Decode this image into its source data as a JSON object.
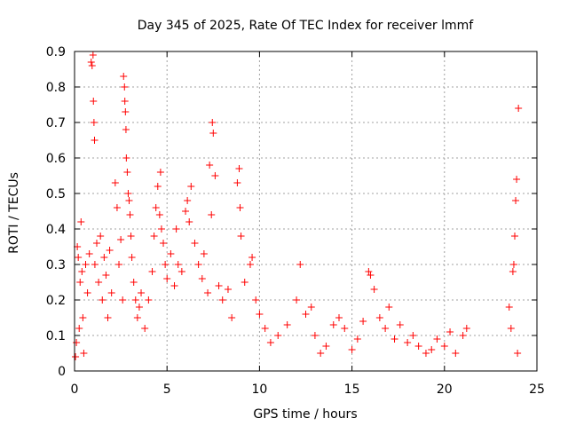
{
  "chart_data": {
    "type": "scatter",
    "title": "Day 345 of 2025, Rate Of TEC Index for receiver lmmf",
    "xlabel": "GPS time / hours",
    "ylabel": "ROTI / TECUs",
    "xlim": [
      0,
      25
    ],
    "ylim": [
      0,
      0.9
    ],
    "x_ticks": [
      "0",
      "5",
      "10",
      "15",
      "20",
      "25"
    ],
    "y_ticks": [
      "0",
      "0.1",
      "0.2",
      "0.3",
      "0.4",
      "0.5",
      "0.6",
      "0.7",
      "0.8",
      "0.9"
    ],
    "grid": true,
    "marker": "+",
    "marker_color": "#ff0000",
    "series": [
      {
        "name": "ROTI",
        "points": [
          [
            0.05,
            0.04
          ],
          [
            0.1,
            0.08
          ],
          [
            0.15,
            0.35
          ],
          [
            0.2,
            0.32
          ],
          [
            0.25,
            0.12
          ],
          [
            0.3,
            0.25
          ],
          [
            0.35,
            0.42
          ],
          [
            0.4,
            0.28
          ],
          [
            0.45,
            0.15
          ],
          [
            0.5,
            0.05
          ],
          [
            0.6,
            0.3
          ],
          [
            0.7,
            0.22
          ],
          [
            0.8,
            0.33
          ],
          [
            0.9,
            0.87
          ],
          [
            0.95,
            0.86
          ],
          [
            1.0,
            0.89
          ],
          [
            1.02,
            0.76
          ],
          [
            1.05,
            0.7
          ],
          [
            1.08,
            0.65
          ],
          [
            1.1,
            0.3
          ],
          [
            1.2,
            0.36
          ],
          [
            1.3,
            0.25
          ],
          [
            1.4,
            0.38
          ],
          [
            1.5,
            0.2
          ],
          [
            1.6,
            0.32
          ],
          [
            1.7,
            0.27
          ],
          [
            1.8,
            0.15
          ],
          [
            1.9,
            0.34
          ],
          [
            2.0,
            0.22
          ],
          [
            2.2,
            0.53
          ],
          [
            2.3,
            0.46
          ],
          [
            2.4,
            0.3
          ],
          [
            2.5,
            0.37
          ],
          [
            2.6,
            0.2
          ],
          [
            2.65,
            0.83
          ],
          [
            2.7,
            0.8
          ],
          [
            2.72,
            0.76
          ],
          [
            2.75,
            0.73
          ],
          [
            2.78,
            0.68
          ],
          [
            2.8,
            0.6
          ],
          [
            2.85,
            0.56
          ],
          [
            2.9,
            0.5
          ],
          [
            2.95,
            0.48
          ],
          [
            3.0,
            0.44
          ],
          [
            3.05,
            0.38
          ],
          [
            3.1,
            0.32
          ],
          [
            3.2,
            0.25
          ],
          [
            3.3,
            0.2
          ],
          [
            3.4,
            0.15
          ],
          [
            3.5,
            0.18
          ],
          [
            3.6,
            0.22
          ],
          [
            3.8,
            0.12
          ],
          [
            4.0,
            0.2
          ],
          [
            4.2,
            0.28
          ],
          [
            4.3,
            0.38
          ],
          [
            4.4,
            0.46
          ],
          [
            4.5,
            0.52
          ],
          [
            4.6,
            0.44
          ],
          [
            4.65,
            0.56
          ],
          [
            4.7,
            0.4
          ],
          [
            4.8,
            0.36
          ],
          [
            4.9,
            0.3
          ],
          [
            5.0,
            0.26
          ],
          [
            5.2,
            0.33
          ],
          [
            5.4,
            0.24
          ],
          [
            5.5,
            0.4
          ],
          [
            5.6,
            0.3
          ],
          [
            5.8,
            0.28
          ],
          [
            6.0,
            0.45
          ],
          [
            6.1,
            0.48
          ],
          [
            6.2,
            0.42
          ],
          [
            6.3,
            0.52
          ],
          [
            6.5,
            0.36
          ],
          [
            6.7,
            0.3
          ],
          [
            6.9,
            0.26
          ],
          [
            7.0,
            0.33
          ],
          [
            7.2,
            0.22
          ],
          [
            7.3,
            0.58
          ],
          [
            7.4,
            0.44
          ],
          [
            7.45,
            0.7
          ],
          [
            7.5,
            0.67
          ],
          [
            7.6,
            0.55
          ],
          [
            7.8,
            0.24
          ],
          [
            8.0,
            0.2
          ],
          [
            8.3,
            0.23
          ],
          [
            8.5,
            0.15
          ],
          [
            8.8,
            0.53
          ],
          [
            8.9,
            0.57
          ],
          [
            8.95,
            0.46
          ],
          [
            9.0,
            0.38
          ],
          [
            9.2,
            0.25
          ],
          [
            9.5,
            0.3
          ],
          [
            9.6,
            0.32
          ],
          [
            9.8,
            0.2
          ],
          [
            10.0,
            0.16
          ],
          [
            10.3,
            0.12
          ],
          [
            10.6,
            0.08
          ],
          [
            11.0,
            0.1
          ],
          [
            11.5,
            0.13
          ],
          [
            12.0,
            0.2
          ],
          [
            12.2,
            0.3
          ],
          [
            12.5,
            0.16
          ],
          [
            12.8,
            0.18
          ],
          [
            13.0,
            0.1
          ],
          [
            13.3,
            0.05
          ],
          [
            13.6,
            0.07
          ],
          [
            14.0,
            0.13
          ],
          [
            14.3,
            0.15
          ],
          [
            14.6,
            0.12
          ],
          [
            15.0,
            0.06
          ],
          [
            15.3,
            0.09
          ],
          [
            15.6,
            0.14
          ],
          [
            15.9,
            0.28
          ],
          [
            16.0,
            0.27
          ],
          [
            16.2,
            0.23
          ],
          [
            16.5,
            0.15
          ],
          [
            16.8,
            0.12
          ],
          [
            17.0,
            0.18
          ],
          [
            17.3,
            0.09
          ],
          [
            17.6,
            0.13
          ],
          [
            18.0,
            0.08
          ],
          [
            18.3,
            0.1
          ],
          [
            18.6,
            0.07
          ],
          [
            19.0,
            0.05
          ],
          [
            19.3,
            0.06
          ],
          [
            19.6,
            0.09
          ],
          [
            20.0,
            0.07
          ],
          [
            20.3,
            0.11
          ],
          [
            20.6,
            0.05
          ],
          [
            21.0,
            0.1
          ],
          [
            21.2,
            0.12
          ],
          [
            23.5,
            0.18
          ],
          [
            23.6,
            0.12
          ],
          [
            23.7,
            0.28
          ],
          [
            23.75,
            0.3
          ],
          [
            23.8,
            0.38
          ],
          [
            23.85,
            0.48
          ],
          [
            23.9,
            0.54
          ],
          [
            23.95,
            0.05
          ],
          [
            24.0,
            0.74
          ]
        ]
      }
    ]
  }
}
